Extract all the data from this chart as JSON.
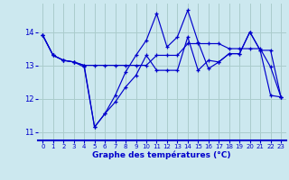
{
  "xlabel": "Graphe des températures (°C)",
  "hours": [
    0,
    1,
    2,
    3,
    4,
    5,
    6,
    7,
    8,
    9,
    10,
    11,
    12,
    13,
    14,
    15,
    16,
    17,
    18,
    19,
    20,
    21,
    22,
    23
  ],
  "line1": [
    13.9,
    13.3,
    13.15,
    13.1,
    13.0,
    11.15,
    11.55,
    11.9,
    12.35,
    12.7,
    13.3,
    12.85,
    12.85,
    12.85,
    13.85,
    12.85,
    13.15,
    13.1,
    13.35,
    13.35,
    14.0,
    13.45,
    13.45,
    12.05
  ],
  "line2": [
    13.9,
    13.3,
    13.15,
    13.1,
    12.95,
    11.15,
    11.55,
    12.1,
    12.8,
    13.3,
    13.75,
    14.55,
    13.55,
    13.85,
    14.65,
    13.7,
    12.9,
    13.1,
    13.35,
    13.35,
    14.0,
    13.45,
    12.1,
    12.05
  ],
  "line3": [
    13.9,
    13.3,
    13.15,
    13.1,
    13.0,
    13.0,
    13.0,
    13.0,
    13.0,
    13.0,
    13.0,
    13.3,
    13.3,
    13.3,
    13.65,
    13.65,
    13.65,
    13.65,
    13.5,
    13.5,
    13.5,
    13.5,
    12.95,
    12.05
  ],
  "ylim": [
    10.75,
    14.85
  ],
  "yticks": [
    11,
    12,
    13,
    14
  ],
  "bg_color": "#cce8ef",
  "grid_color": "#aacccc",
  "line_color": "#0000cc",
  "markersize": 3.5,
  "linewidth": 0.85
}
